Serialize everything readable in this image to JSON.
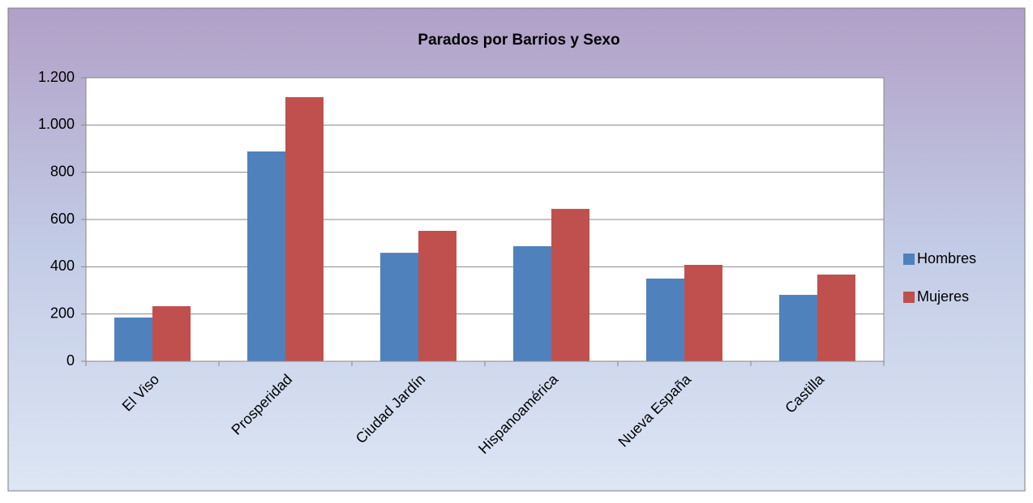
{
  "chart_data": {
    "type": "bar",
    "title": "Parados por Barrios y Sexo",
    "categories": [
      "El Viso",
      "Prosperidad",
      "Ciudad Jardín",
      "Hispanoamérica",
      "Nueva España",
      "Castilla"
    ],
    "series": [
      {
        "name": "Hombres",
        "color": "#4f81bd",
        "values": [
          185,
          888,
          459,
          487,
          350,
          281
        ]
      },
      {
        "name": "Mujeres",
        "color": "#c0504d",
        "values": [
          233,
          1118,
          552,
          645,
          408,
          367
        ]
      }
    ],
    "ylim": [
      0,
      1200
    ],
    "yticks": [
      0,
      200,
      400,
      600,
      800,
      {
        "value": 1000,
        "label": "1.000"
      },
      {
        "value": 1200,
        "label": "1.200"
      }
    ],
    "grid": true,
    "legend": "right"
  }
}
